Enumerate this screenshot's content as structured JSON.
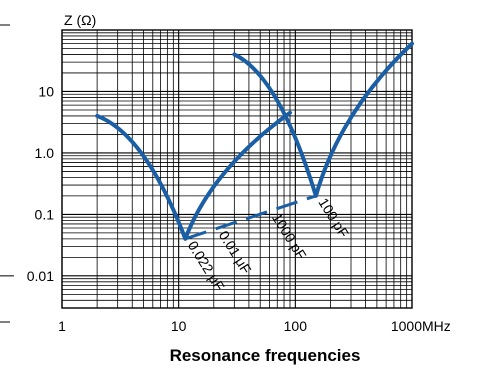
{
  "chart_data": {
    "type": "line",
    "ylabel": "Z (Ω)",
    "x_unit": "MHz",
    "caption": "Resonance frequencies",
    "x_scale": "log",
    "y_scale": "log",
    "xlim": [
      1,
      1000
    ],
    "ylim": [
      0.003,
      100
    ],
    "x_ticks": [
      {
        "value": 1,
        "label": "1"
      },
      {
        "value": 10,
        "label": "10"
      },
      {
        "value": 100,
        "label": "100"
      },
      {
        "value": 1000,
        "label": "1000"
      }
    ],
    "y_ticks": [
      {
        "value": 10,
        "label": "10"
      },
      {
        "value": 1,
        "label": "1.0"
      },
      {
        "value": 0.1,
        "label": "0.1"
      },
      {
        "value": 0.01,
        "label": "0.01"
      }
    ],
    "grid": true,
    "line_color": "#1a5fa5",
    "series": [
      {
        "name": "0.022 μF",
        "resonance_mhz": 11.4,
        "values": [
          [
            2,
            4
          ],
          [
            11.4,
            0.04
          ],
          [
            90,
            4.5
          ]
        ]
      },
      {
        "name": "100 pF",
        "resonance_mhz": 150,
        "values": [
          [
            30,
            40
          ],
          [
            150,
            0.2
          ],
          [
            1000,
            60
          ]
        ]
      }
    ],
    "resonance_trend": {
      "style": "dashed",
      "values": [
        [
          11.4,
          0.04
        ],
        [
          150,
          0.2
        ]
      ]
    },
    "capacitor_labels": [
      {
        "text": "0.022 μF",
        "x": 11.4
      },
      {
        "text": "0.01 μF",
        "x": 21
      },
      {
        "text": "1000 pF",
        "x": 60
      },
      {
        "text": "100 pF",
        "x": 150
      }
    ]
  }
}
